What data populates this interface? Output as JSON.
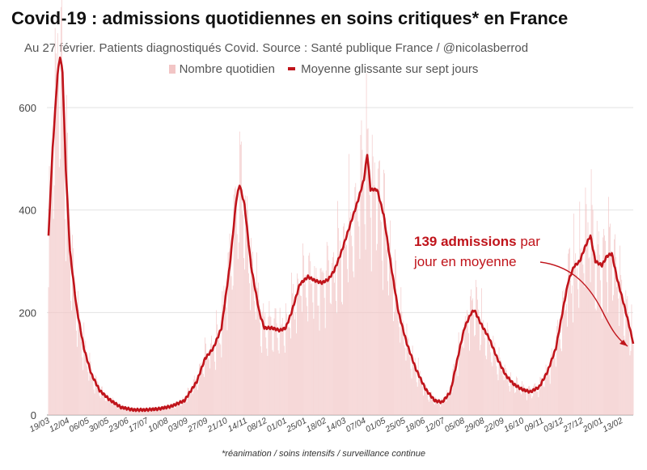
{
  "title": "Covid-19 : admissions quotidiennes en soins critiques* en France",
  "subtitle": "Au 27 février. Patients diagnostiqués Covid. Source : Santé publique France / @nicolasberrod",
  "legend": {
    "bars_label": "Nombre quotidien",
    "line_label": "Moyenne glissante sur sept jours"
  },
  "footnote": "*réanimation / soins intensifs / surveillance continue",
  "annotation": {
    "bold": "139 admissions",
    "rest_line1": " par",
    "line2": "jour en moyenne"
  },
  "colors": {
    "line": "#c0141b",
    "bars": "#f2c5c5",
    "grid": "#e2e2e2"
  },
  "chart_data": {
    "type": "bar+line",
    "x_type": "date",
    "x_start": "2020-03-19",
    "x_end": "2022-02-27",
    "ylim": [
      0,
      720
    ],
    "yticks": [
      0,
      200,
      400,
      600
    ],
    "grid": true,
    "legend_position": "top",
    "xtick_labels": [
      "19/03",
      "12/04",
      "06/05",
      "30/05",
      "23/06",
      "17/07",
      "10/08",
      "03/09",
      "27/09",
      "21/10",
      "14/11",
      "08/12",
      "01/01",
      "25/01",
      "18/02",
      "14/03",
      "07/04",
      "01/05",
      "25/05",
      "18/06",
      "12/07",
      "05/08",
      "29/08",
      "22/09",
      "16/10",
      "09/11",
      "03/12",
      "27/12",
      "20/01",
      "13/02"
    ],
    "series": [
      {
        "name": "Moyenne glissante sur sept jours",
        "kind": "line",
        "points": [
          [
            "2020-03-19",
            350
          ],
          [
            "2020-03-24",
            520
          ],
          [
            "2020-03-30",
            665
          ],
          [
            "2020-04-02",
            700
          ],
          [
            "2020-04-05",
            670
          ],
          [
            "2020-04-09",
            480
          ],
          [
            "2020-04-14",
            320
          ],
          [
            "2020-04-22",
            210
          ],
          [
            "2020-05-01",
            130
          ],
          [
            "2020-05-10",
            80
          ],
          [
            "2020-05-20",
            48
          ],
          [
            "2020-06-01",
            30
          ],
          [
            "2020-06-15",
            15
          ],
          [
            "2020-06-30",
            10
          ],
          [
            "2020-07-15",
            10
          ],
          [
            "2020-07-31",
            12
          ],
          [
            "2020-08-15",
            17
          ],
          [
            "2020-08-31",
            28
          ],
          [
            "2020-09-15",
            65
          ],
          [
            "2020-09-25",
            110
          ],
          [
            "2020-10-05",
            130
          ],
          [
            "2020-10-15",
            170
          ],
          [
            "2020-10-25",
            290
          ],
          [
            "2020-11-02",
            420
          ],
          [
            "2020-11-06",
            450
          ],
          [
            "2020-11-12",
            410
          ],
          [
            "2020-11-20",
            290
          ],
          [
            "2020-11-30",
            200
          ],
          [
            "2020-12-06",
            170
          ],
          [
            "2020-12-15",
            170
          ],
          [
            "2020-12-25",
            165
          ],
          [
            "2021-01-01",
            170
          ],
          [
            "2021-01-08",
            200
          ],
          [
            "2021-01-18",
            255
          ],
          [
            "2021-01-28",
            270
          ],
          [
            "2021-02-06",
            262
          ],
          [
            "2021-02-14",
            258
          ],
          [
            "2021-02-22",
            265
          ],
          [
            "2021-03-01",
            282
          ],
          [
            "2021-03-10",
            320
          ],
          [
            "2021-03-20",
            370
          ],
          [
            "2021-03-30",
            420
          ],
          [
            "2021-04-06",
            460
          ],
          [
            "2021-04-10",
            510
          ],
          [
            "2021-04-14",
            440
          ],
          [
            "2021-04-22",
            440
          ],
          [
            "2021-04-30",
            390
          ],
          [
            "2021-05-08",
            300
          ],
          [
            "2021-05-18",
            200
          ],
          [
            "2021-05-28",
            140
          ],
          [
            "2021-06-08",
            90
          ],
          [
            "2021-06-20",
            50
          ],
          [
            "2021-07-01",
            28
          ],
          [
            "2021-07-10",
            25
          ],
          [
            "2021-07-20",
            45
          ],
          [
            "2021-07-30",
            120
          ],
          [
            "2021-08-06",
            170
          ],
          [
            "2021-08-14",
            198
          ],
          [
            "2021-08-18",
            205
          ],
          [
            "2021-08-26",
            178
          ],
          [
            "2021-09-05",
            150
          ],
          [
            "2021-09-15",
            110
          ],
          [
            "2021-09-25",
            78
          ],
          [
            "2021-10-05",
            60
          ],
          [
            "2021-10-15",
            50
          ],
          [
            "2021-10-25",
            45
          ],
          [
            "2021-11-05",
            55
          ],
          [
            "2021-11-15",
            85
          ],
          [
            "2021-11-25",
            130
          ],
          [
            "2021-12-03",
            200
          ],
          [
            "2021-12-10",
            260
          ],
          [
            "2021-12-17",
            290
          ],
          [
            "2021-12-24",
            300
          ],
          [
            "2021-12-31",
            330
          ],
          [
            "2022-01-06",
            350
          ],
          [
            "2022-01-12",
            300
          ],
          [
            "2022-01-20",
            292
          ],
          [
            "2022-01-26",
            310
          ],
          [
            "2022-02-01",
            315
          ],
          [
            "2022-02-08",
            262
          ],
          [
            "2022-02-15",
            220
          ],
          [
            "2022-02-22",
            175
          ],
          [
            "2022-02-27",
            139
          ]
        ]
      },
      {
        "name": "Nombre quotidien",
        "kind": "bar",
        "note": "daily values fluctuate around the moving average; generated from it with weekly variation"
      }
    ],
    "annotations": [
      {
        "text": "139 admissions par jour en moyenne",
        "points_to": [
          "2022-02-27",
          139
        ]
      }
    ]
  }
}
